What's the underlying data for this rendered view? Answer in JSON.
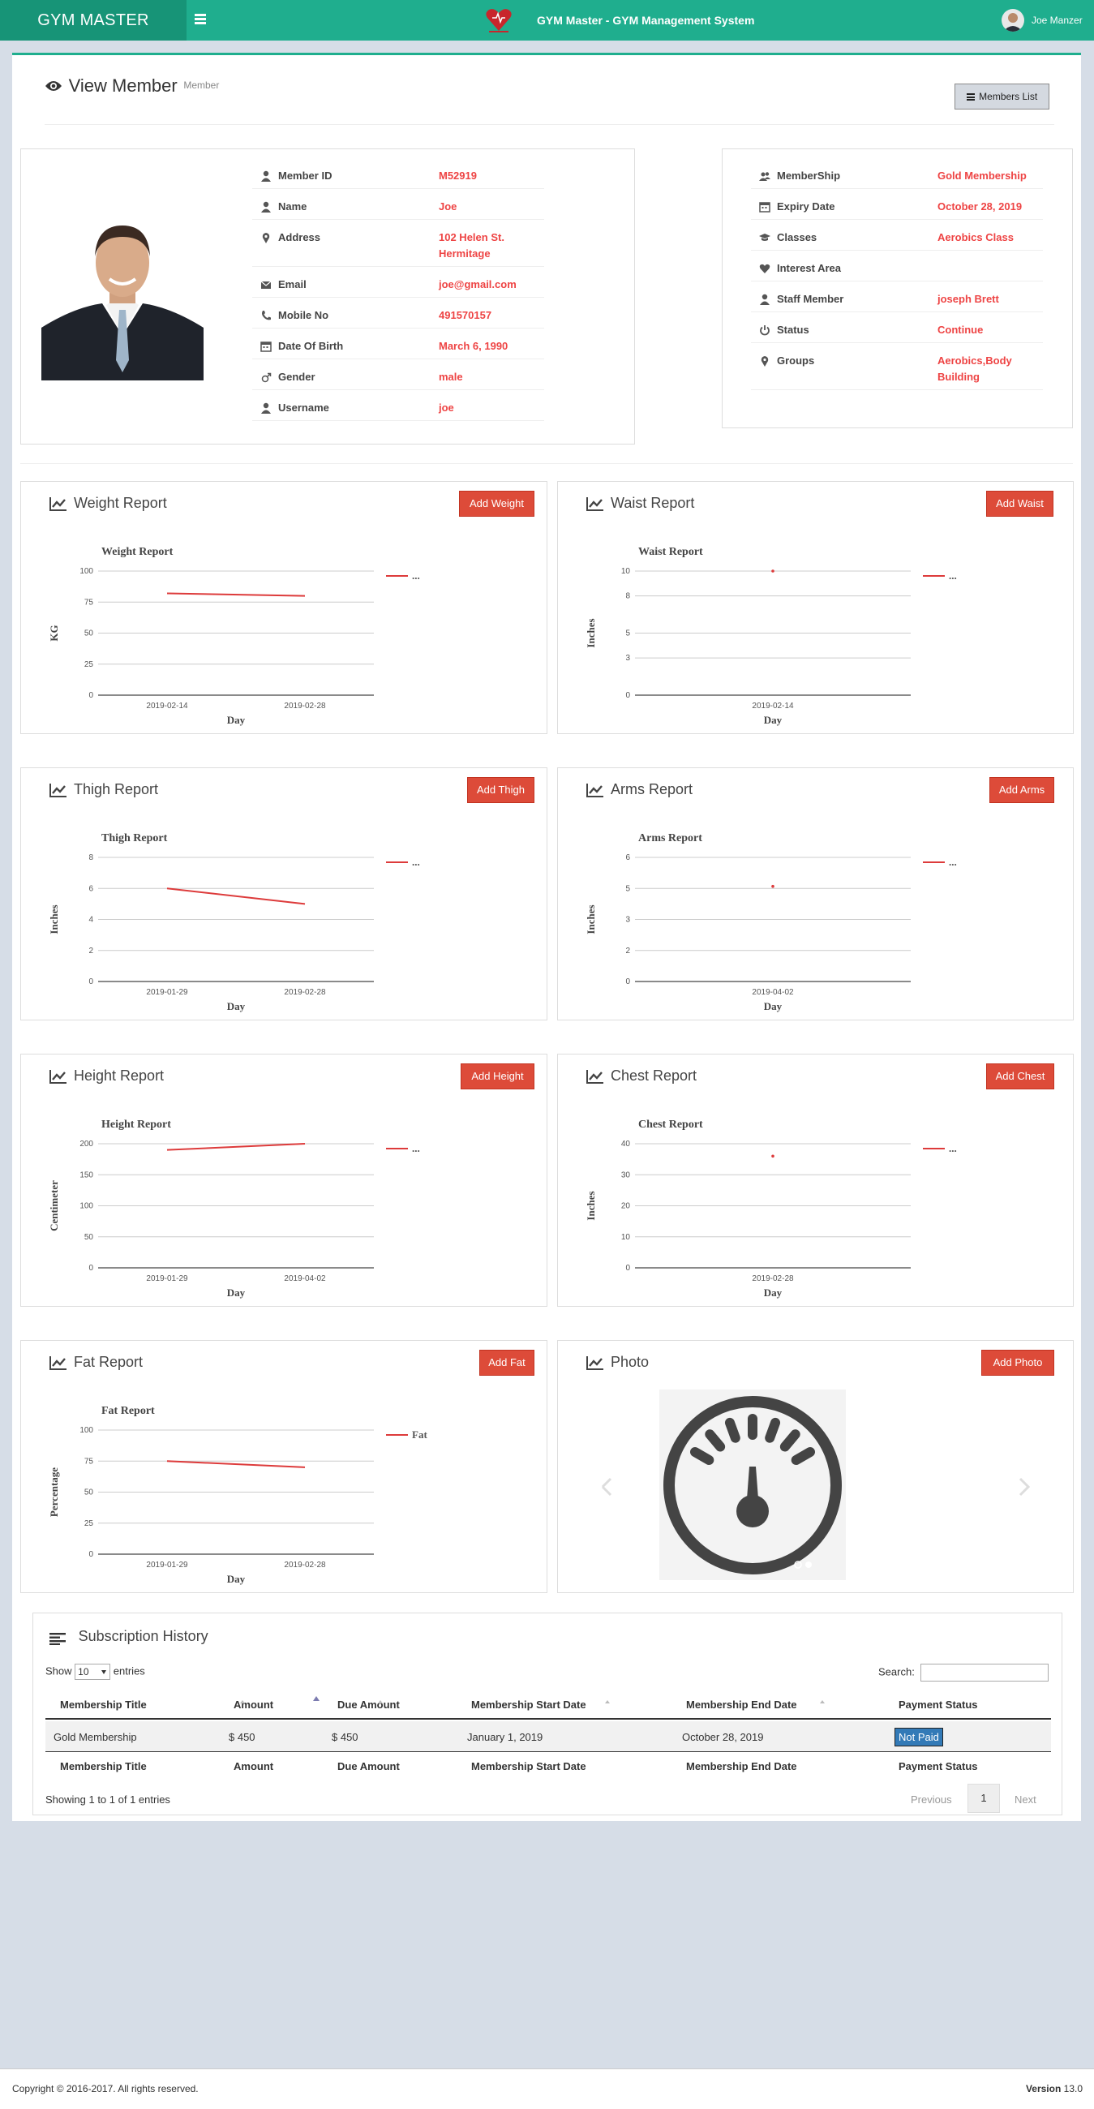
{
  "header": {
    "brand": "GYM MASTER",
    "app_title": "GYM Master - GYM Management System",
    "user_name": "Joe Manzer"
  },
  "page": {
    "title": "View Member",
    "subtitle": "Member",
    "members_list_label": "Members List"
  },
  "member": {
    "fields": [
      {
        "label": "Member ID",
        "value": "M52919",
        "icon": "user-icon"
      },
      {
        "label": "Name",
        "value": "Joe",
        "icon": "user-icon"
      },
      {
        "label": "Address",
        "value": "102 Helen St.",
        "value2": "Hermitage",
        "icon": "map-marker-icon"
      },
      {
        "label": "Email",
        "value": "joe@gmail.com",
        "icon": "envelope-icon"
      },
      {
        "label": "Mobile No",
        "value": "491570157",
        "icon": "phone-icon"
      },
      {
        "label": "Date Of Birth",
        "value": "March 6, 1990",
        "icon": "calendar-icon"
      },
      {
        "label": "Gender",
        "value": "male",
        "icon": "male-icon"
      },
      {
        "label": "Username",
        "value": "joe",
        "icon": "user-icon"
      }
    ],
    "membership": [
      {
        "label": "MemberShip",
        "value": "Gold Membership",
        "icon": "users-icon"
      },
      {
        "label": "Expiry Date",
        "value": "October 28, 2019",
        "icon": "calendar-icon"
      },
      {
        "label": "Classes",
        "value": "Aerobics Class",
        "icon": "graduation-cap-icon"
      },
      {
        "label": "Interest Area",
        "value": "",
        "icon": "heart-icon"
      },
      {
        "label": "Staff Member",
        "value": "joseph Brett",
        "icon": "user-icon"
      },
      {
        "label": "Status",
        "value": "Continue",
        "icon": "power-icon"
      },
      {
        "label": "Groups",
        "value": "Aerobics,Body",
        "value2": "Building",
        "icon": "map-marker-icon"
      }
    ]
  },
  "panels": {
    "weight": {
      "title": "Weight Report",
      "button": "Add Weight"
    },
    "waist": {
      "title": "Waist Report",
      "button": "Add Waist"
    },
    "thigh": {
      "title": "Thigh Report",
      "button": "Add Thigh"
    },
    "arms": {
      "title": "Arms Report",
      "button": "Add Arms"
    },
    "height": {
      "title": "Height Report",
      "button": "Add Height"
    },
    "chest": {
      "title": "Chest Report",
      "button": "Add Chest"
    },
    "fat": {
      "title": "Fat Report",
      "button": "Add Fat"
    },
    "photo": {
      "title": "Photo",
      "button": "Add Photo"
    }
  },
  "chart_data": [
    {
      "id": "weight",
      "type": "line",
      "title": "Weight Report",
      "xlabel": "Day",
      "ylabel": "KG",
      "ylim": [
        0,
        100
      ],
      "yticks": [
        0,
        25,
        50,
        75,
        100
      ],
      "x": [
        "2019-02-14",
        "2019-02-28"
      ],
      "values": [
        82,
        80
      ],
      "legend": "..."
    },
    {
      "id": "waist",
      "type": "line",
      "title": "Waist Report",
      "xlabel": "Day",
      "ylabel": "Inches",
      "ylim": [
        0,
        10
      ],
      "yticks": [
        0,
        3,
        5,
        8,
        10
      ],
      "ytick_labels": [
        "0",
        "3",
        "5",
        "8",
        "10"
      ],
      "x": [
        "2019-02-14"
      ],
      "values": [
        10
      ],
      "legend": "..."
    },
    {
      "id": "thigh",
      "type": "line",
      "title": "Thigh Report",
      "xlabel": "Day",
      "ylabel": "Inches",
      "ylim": [
        0,
        8
      ],
      "yticks": [
        0,
        2,
        4,
        6,
        8
      ],
      "x": [
        "2019-01-29",
        "2019-02-28"
      ],
      "values": [
        6,
        5
      ],
      "legend": "..."
    },
    {
      "id": "arms",
      "type": "line",
      "title": "Arms Report",
      "xlabel": "Day",
      "ylabel": "Inches",
      "ylim": [
        0,
        6
      ],
      "yticks": [
        0,
        1.5,
        3,
        4.5,
        6
      ],
      "ytick_labels": [
        "0",
        "2",
        "3",
        "5",
        "6"
      ],
      "x": [
        "2019-04-02"
      ],
      "values": [
        4.6
      ],
      "legend": "..."
    },
    {
      "id": "height",
      "type": "line",
      "title": "Height Report",
      "xlabel": "Day",
      "ylabel": "Centimeter",
      "ylim": [
        0,
        200
      ],
      "yticks": [
        0,
        50,
        100,
        150,
        200
      ],
      "x": [
        "2019-01-29",
        "2019-04-02"
      ],
      "values": [
        190,
        200
      ],
      "legend": "..."
    },
    {
      "id": "chest",
      "type": "line",
      "title": "Chest Report",
      "xlabel": "Day",
      "ylabel": "Inches",
      "ylim": [
        0,
        40
      ],
      "yticks": [
        0,
        10,
        20,
        30,
        40
      ],
      "x": [
        "2019-02-28"
      ],
      "values": [
        36
      ],
      "legend": "..."
    },
    {
      "id": "fat",
      "type": "line",
      "title": "Fat Report",
      "xlabel": "Day",
      "ylabel": "Percentage",
      "ylim": [
        0,
        100
      ],
      "yticks": [
        0,
        25,
        50,
        75,
        100
      ],
      "x": [
        "2019-01-29",
        "2019-02-28"
      ],
      "values": [
        75,
        70
      ],
      "legend": "Fat"
    }
  ],
  "subscription": {
    "title": "Subscription History",
    "show_label": "Show",
    "entries_value": "10",
    "entries_label": "entries",
    "search_label": "Search:",
    "columns": [
      "Membership Title",
      "Amount",
      "Due Amount",
      "Membership Start Date",
      "Membership End Date",
      "Payment Status"
    ],
    "rows": [
      {
        "title": "Gold Membership",
        "amount": "$ 450",
        "due": "$ 450",
        "start": "January 1, 2019",
        "end": "October 28, 2019",
        "status": "Not Paid"
      }
    ],
    "info": "Showing 1 to 1 of 1 entries",
    "prev": "Previous",
    "page": "1",
    "next": "Next"
  },
  "footer": {
    "copyright": "Copyright © 2016-2017. All rights reserved.",
    "version_label": "Version",
    "version": "13.0"
  },
  "colors": {
    "teal": "#1fae8e",
    "red": "#dd4b39",
    "accent_text": "#e44444",
    "badge": "#337ab7"
  }
}
